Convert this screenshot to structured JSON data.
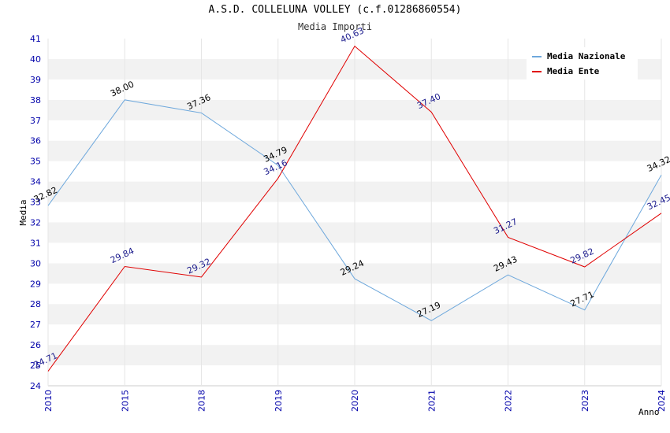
{
  "chart_data": {
    "type": "line",
    "title": "A.S.D. COLLELUNA VOLLEY (c.f.01286860554)",
    "subtitle": "Media Importi",
    "xlabel": "Anno",
    "ylabel": "Media",
    "categories": [
      "2010",
      "2015",
      "2018",
      "2019",
      "2020",
      "2021",
      "2022",
      "2023",
      "2024"
    ],
    "ylim": [
      24,
      41
    ],
    "yticks": [
      24,
      25,
      26,
      27,
      28,
      29,
      30,
      31,
      32,
      33,
      34,
      35,
      36,
      37,
      38,
      39,
      40,
      41
    ],
    "grid": "horizontal bands",
    "legend_position": "top-right",
    "series": [
      {
        "name": "Media Nazionale",
        "color": "#6ea8dc",
        "label_color": "#000000",
        "values": [
          32.82,
          38.0,
          37.36,
          34.79,
          29.24,
          27.19,
          29.43,
          27.71,
          34.32
        ],
        "labels": [
          "32.82",
          "38.00",
          "37.36",
          "34.79",
          "29.24",
          "27.19",
          "29.43",
          "27.71",
          "34.32"
        ]
      },
      {
        "name": "Media Ente",
        "color": "#e00000",
        "label_color": "#1a1a8c",
        "values": [
          24.71,
          29.84,
          29.32,
          34.16,
          40.63,
          37.4,
          31.27,
          29.82,
          32.45
        ],
        "labels": [
          "24.71",
          "29.84",
          "29.32",
          "34.16",
          "40.63",
          "37.40",
          "31.27",
          "29.82",
          "32.45"
        ]
      }
    ]
  }
}
